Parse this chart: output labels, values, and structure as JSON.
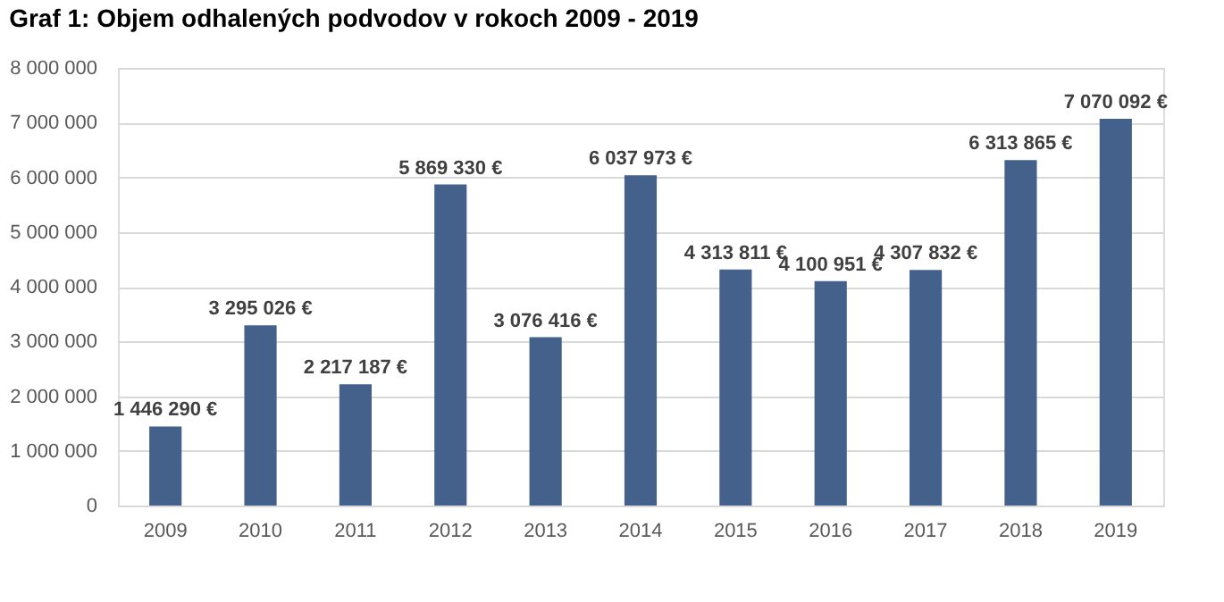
{
  "chart_data": {
    "type": "bar",
    "title": "Graf 1: Objem odhalených podvodov v rokoch 2009 - 2019",
    "categories": [
      "2009",
      "2010",
      "2011",
      "2012",
      "2013",
      "2014",
      "2015",
      "2016",
      "2017",
      "2018",
      "2019"
    ],
    "values": [
      1446290,
      3295026,
      2217187,
      5869330,
      3076416,
      6037973,
      4313811,
      4100951,
      4307832,
      6313865,
      7070092
    ],
    "value_labels": [
      "1 446 290 €",
      "3 295 026 €",
      "2 217 187 €",
      "5 869 330 €",
      "3 076 416 €",
      "6 037 973 €",
      "4 313 811 €",
      "4 100 951 €",
      "4 307 832 €",
      "6 313 865 €",
      "7 070 092 €"
    ],
    "color": "#44618b",
    "ylim": [
      0,
      8000000
    ],
    "yticks": [
      0,
      {
        "value": 1000000,
        "label": "1 000 000"
      },
      {
        "value": 2000000,
        "label": "2 000 000"
      },
      {
        "value": 3000000,
        "label": "3 000 000"
      },
      {
        "value": 4000000,
        "label": "4 000 000"
      },
      {
        "value": 5000000,
        "label": "5 000 000"
      },
      {
        "value": 6000000,
        "label": "6 000 000"
      },
      {
        "value": 7000000,
        "label": "7 000 000"
      },
      {
        "value": 8000000,
        "label": "8 000 000"
      }
    ],
    "grid": "y"
  }
}
